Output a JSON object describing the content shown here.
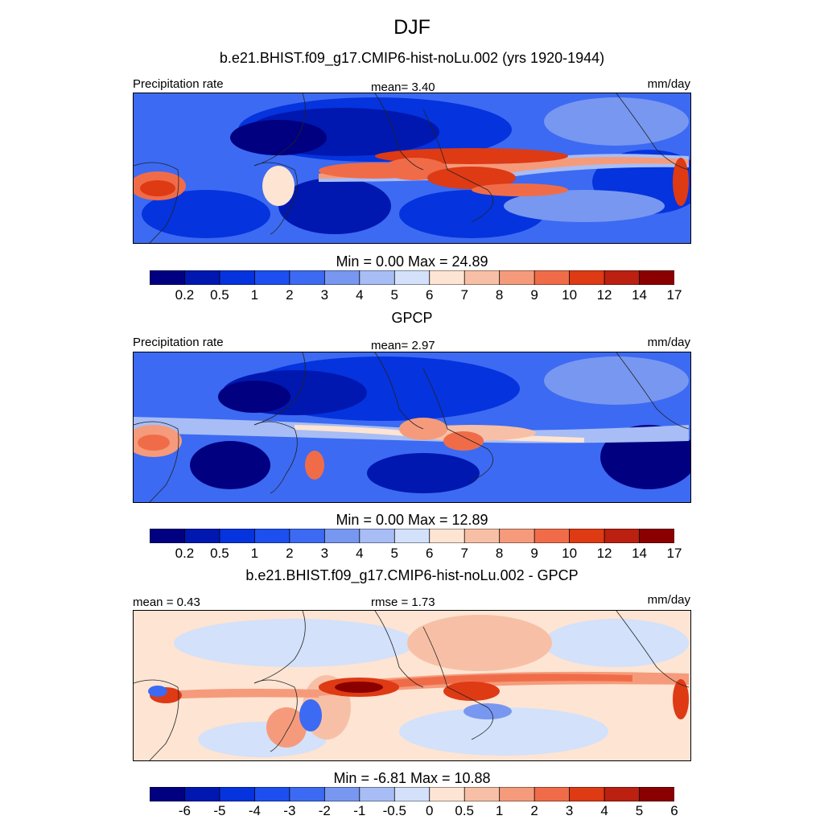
{
  "title": "DJF",
  "panels": [
    {
      "id": "model",
      "subtitle": "b.e21.BHIST.f09_g17.CMIP6-hist-noLu.002 (yrs 1920-1944)",
      "left_label": "Precipitation rate",
      "center_label": "mean=   3.40",
      "right_label": "mm/day",
      "minmax": "Min =   0.00 Max =  24.89",
      "colorbar": "precip"
    },
    {
      "id": "obs",
      "subtitle": "GPCP",
      "left_label": "Precipitation rate",
      "center_label": "mean=   2.97",
      "right_label": "mm/day",
      "minmax": "Min =   0.00 Max =  12.89",
      "colorbar": "precip"
    },
    {
      "id": "diff",
      "subtitle": "b.e21.BHIST.f09_g17.CMIP6-hist-noLu.002 - GPCP",
      "left_label": "mean =   0.43",
      "center_label": "rmse =   1.73",
      "right_label": "mm/day",
      "minmax": "Min =  -6.81 Max =  10.88",
      "colorbar": "diff"
    }
  ],
  "colorbars": {
    "precip": {
      "levels": [
        "0.2",
        "0.5",
        "1",
        "2",
        "3",
        "4",
        "5",
        "6",
        "7",
        "8",
        "9",
        "10",
        "12",
        "14",
        "17"
      ],
      "colors": [
        "#000080",
        "#0018b0",
        "#0533dd",
        "#1d4ff0",
        "#3c6af2",
        "#7897f0",
        "#a8bdf5",
        "#d3e1fa",
        "#fde4d3",
        "#f7c0a6",
        "#f59b7b",
        "#f06c49",
        "#de3a14",
        "#bb2010",
        "#8a0000"
      ]
    },
    "diff": {
      "levels": [
        "-6",
        "-5",
        "-4",
        "-3",
        "-2",
        "-1",
        "-0.5",
        "0",
        "0.5",
        "1",
        "2",
        "3",
        "4",
        "5",
        "6"
      ],
      "colors": [
        "#000080",
        "#0018b0",
        "#0533dd",
        "#1d4ff0",
        "#3c6af2",
        "#7897f0",
        "#a8bdf5",
        "#d3e1fa",
        "#fde4d3",
        "#f7c0a6",
        "#f59b7b",
        "#f06c49",
        "#de3a14",
        "#bb2010",
        "#8a0000"
      ]
    }
  }
}
